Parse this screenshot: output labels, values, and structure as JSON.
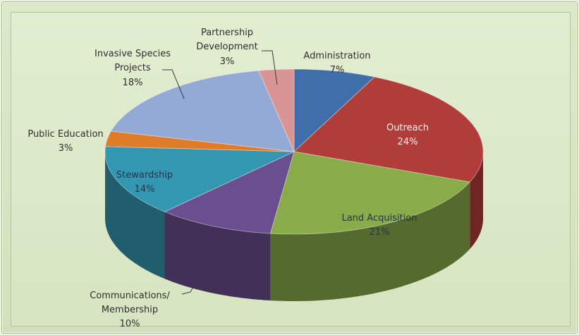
{
  "chart_data": {
    "type": "pie",
    "title": "",
    "three_d": true,
    "slices": [
      {
        "label": "Administration",
        "value": 7,
        "value_label": "7%",
        "color": "#3f6ea8"
      },
      {
        "label": "Outreach",
        "value": 24,
        "value_label": "24%",
        "color": "#b13d3b"
      },
      {
        "label": "Land Acquisition",
        "value": 21,
        "value_label": "21%",
        "color": "#8aab4a"
      },
      {
        "label": "Communications/ Membership",
        "value": 10,
        "value_label": "10%",
        "color": "#6b4e8f"
      },
      {
        "label": "Stewardship",
        "value": 14,
        "value_label": "14%",
        "color": "#3497b2"
      },
      {
        "label": "Public Education",
        "value": 3,
        "value_label": "3%",
        "color": "#e07b2a"
      },
      {
        "label": "Invasive Species Projects",
        "value": 18,
        "value_label": "18%",
        "color": "#93a9d6"
      },
      {
        "label": "Partnership Development",
        "value": 3,
        "value_label": "3%",
        "color": "#d99593"
      }
    ]
  }
}
